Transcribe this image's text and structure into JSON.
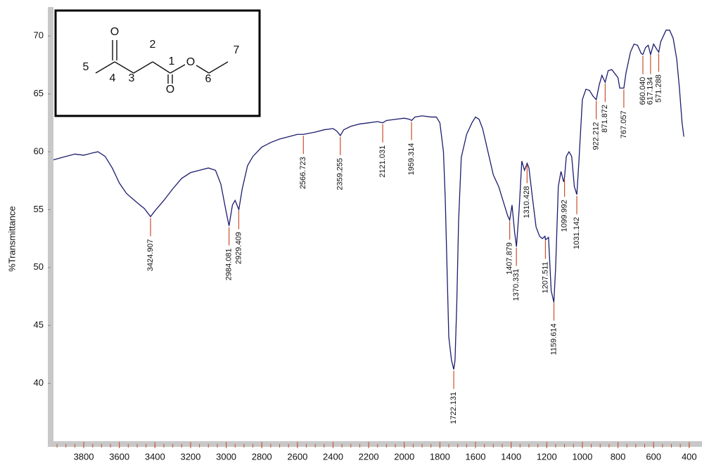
{
  "chart_data": {
    "type": "line",
    "ylabel": "%Transmittance",
    "x": [
      3970,
      3900,
      3850,
      3800,
      3750,
      3720,
      3680,
      3640,
      3600,
      3560,
      3500,
      3460,
      3424.9,
      3400,
      3350,
      3300,
      3250,
      3200,
      3150,
      3100,
      3060,
      3030,
      3000,
      2984,
      2965,
      2950,
      2929,
      2910,
      2880,
      2850,
      2800,
      2750,
      2700,
      2650,
      2600,
      2566,
      2500,
      2450,
      2400,
      2380,
      2359,
      2340,
      2300,
      2250,
      2200,
      2150,
      2121,
      2100,
      2050,
      2000,
      1970,
      1959,
      1940,
      1900,
      1850,
      1820,
      1800,
      1780,
      1770,
      1760,
      1750,
      1735,
      1722,
      1715,
      1705,
      1695,
      1680,
      1650,
      1620,
      1600,
      1580,
      1560,
      1530,
      1500,
      1470,
      1440,
      1420,
      1408,
      1395,
      1380,
      1370,
      1355,
      1340,
      1325,
      1310,
      1300,
      1280,
      1260,
      1240,
      1225,
      1210,
      1207,
      1190,
      1175,
      1160,
      1150,
      1135,
      1120,
      1105,
      1100,
      1090,
      1075,
      1060,
      1045,
      1031,
      1020,
      1000,
      980,
      960,
      940,
      922,
      905,
      890,
      872,
      855,
      835,
      815,
      800,
      790,
      767,
      755,
      730,
      710,
      690,
      670,
      660,
      645,
      630,
      617,
      600,
      580,
      571,
      560,
      530,
      510,
      490,
      470,
      455,
      440,
      430
    ],
    "values": [
      59.3,
      59.6,
      59.8,
      59.7,
      59.9,
      60.0,
      59.6,
      58.6,
      57.3,
      56.4,
      55.6,
      55.1,
      54.4,
      54.9,
      55.8,
      56.8,
      57.7,
      58.2,
      58.4,
      58.6,
      58.4,
      57.2,
      54.8,
      53.6,
      55.4,
      55.8,
      55.0,
      56.8,
      58.8,
      59.6,
      60.4,
      60.8,
      61.1,
      61.3,
      61.5,
      61.5,
      61.7,
      61.9,
      62.0,
      61.8,
      61.4,
      61.9,
      62.2,
      62.4,
      62.5,
      62.6,
      62.5,
      62.7,
      62.8,
      62.9,
      62.8,
      62.7,
      63.0,
      63.1,
      63.0,
      63.0,
      62.5,
      60.0,
      56,
      50,
      44,
      42,
      41.2,
      42,
      47,
      54,
      59.5,
      61.5,
      62.5,
      63.0,
      62.8,
      62,
      60,
      58,
      57,
      55.5,
      54.5,
      54.1,
      55.4,
      53,
      51.8,
      55,
      59.2,
      58.4,
      59.0,
      58.6,
      56,
      53.5,
      52.7,
      52.5,
      52.7,
      52.4,
      52.6,
      48,
      47.0,
      50,
      57,
      58.3,
      57.4,
      57.8,
      59.6,
      60.0,
      59.6,
      57.0,
      56.3,
      59,
      64.5,
      65.4,
      65.3,
      64.8,
      64.5,
      65.8,
      66.6,
      66.0,
      67.0,
      67.1,
      66.7,
      66.4,
      65.5,
      65.5,
      66.8,
      68.6,
      69.3,
      69.2,
      68.5,
      68.4,
      69.0,
      69.2,
      68.4,
      69.3,
      68.8,
      68.6,
      69.5,
      70.5,
      70.5,
      69.8,
      68,
      65.5,
      62.5,
      61.3
    ],
    "color": "#1c1c6e",
    "xlim": [
      3970,
      340
    ],
    "ylim": [
      35,
      72.5
    ],
    "xticks": [
      3800,
      3600,
      3400,
      3200,
      3000,
      2800,
      2600,
      2400,
      2200,
      2000,
      1800,
      1600,
      1400,
      1200,
      1000,
      800,
      600,
      400
    ],
    "xminorticks": [
      3950,
      3900,
      3850,
      3800,
      3750,
      3700,
      3650,
      3600,
      3550,
      3500,
      3450,
      3400,
      3350,
      3300,
      3250,
      3200,
      3150,
      3100,
      3050,
      3000,
      2950,
      2900,
      2850,
      2800,
      2750,
      2700,
      2650,
      2600,
      2550,
      2500,
      2450,
      2400,
      2350,
      2300,
      2250,
      2200,
      2150,
      2100,
      2050,
      2000,
      1950,
      1900,
      1850,
      1800,
      1750,
      1700,
      1650,
      1600,
      1550,
      1500,
      1450,
      1400,
      1350,
      1300,
      1250,
      1200,
      1150,
      1100,
      1050,
      1000,
      950,
      900,
      850,
      800,
      750,
      700,
      650,
      600,
      550,
      500,
      450,
      400
    ],
    "yticks": [
      40,
      45,
      50,
      55,
      60,
      65,
      70
    ],
    "tick_color": "#c8502a",
    "peaks": [
      3424.907,
      2984.081,
      2929.409,
      2566.723,
      2359.255,
      2121.031,
      1959.314,
      1722.131,
      1407.879,
      1370.331,
      1310.428,
      1207.511,
      1159.614,
      1099.992,
      1031.142,
      922.212,
      871.872,
      767.057,
      {
        "value": 660.04,
        "label": "660.040"
      },
      617.134,
      571.288
    ],
    "peak_color": "#c8502a",
    "peak_label_color": "#3a2a8c"
  },
  "structure": {
    "atoms": [
      "O",
      "O",
      "O"
    ],
    "numbers": [
      "1",
      "2",
      "3",
      "4",
      "5",
      "6",
      "7"
    ]
  }
}
